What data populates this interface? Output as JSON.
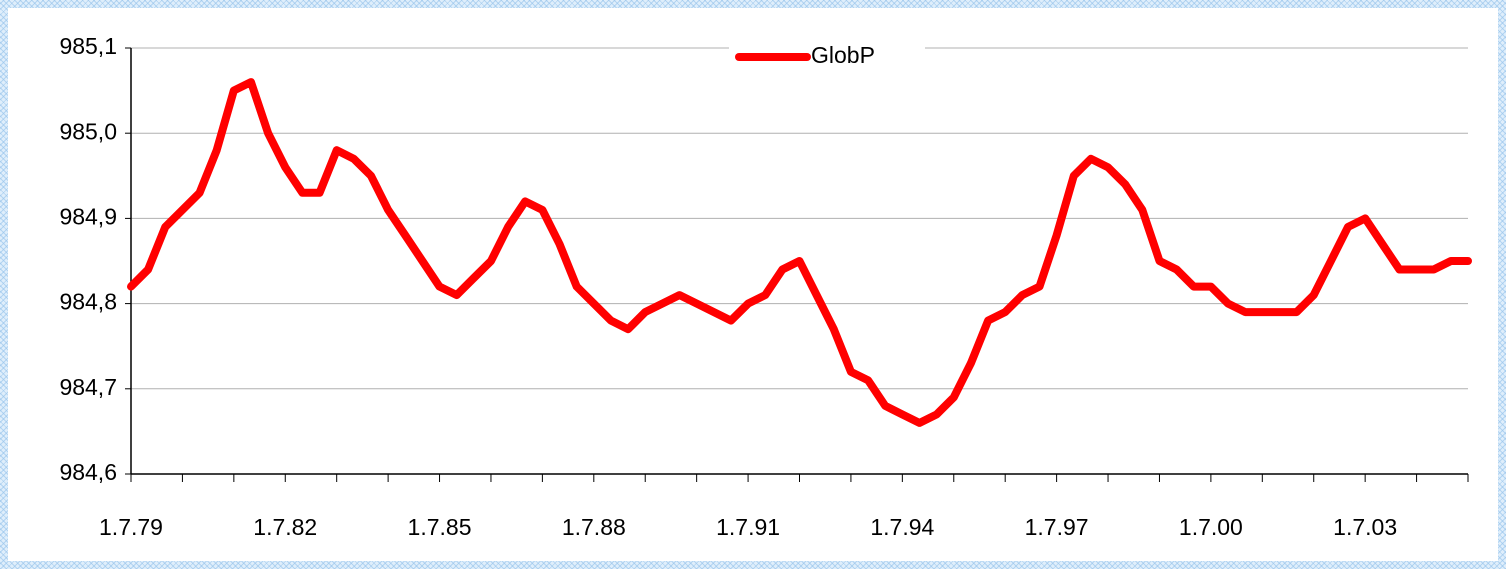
{
  "chart_data": {
    "type": "line",
    "categories": [
      "1.7.79",
      null,
      null,
      null,
      null,
      null,
      null,
      null,
      null,
      "1.7.82",
      null,
      null,
      null,
      null,
      null,
      null,
      null,
      null,
      "1.7.85",
      null,
      null,
      null,
      null,
      null,
      null,
      null,
      null,
      "1.7.88",
      null,
      null,
      null,
      null,
      null,
      null,
      null,
      null,
      "1.7.91",
      null,
      null,
      null,
      null,
      null,
      null,
      null,
      null,
      "1.7.94",
      null,
      null,
      null,
      null,
      null,
      null,
      null,
      null,
      "1.7.97",
      null,
      null,
      null,
      null,
      null,
      null,
      null,
      null,
      "1.7.00",
      null,
      null,
      null,
      null,
      null,
      null,
      null,
      null,
      "1.7.03",
      null,
      null,
      null,
      null,
      null,
      null
    ],
    "series": [
      {
        "name": "GlobP",
        "color": "#ff0000",
        "values": [
          984.82,
          984.84,
          984.89,
          984.91,
          984.93,
          984.98,
          985.05,
          985.06,
          985.0,
          984.96,
          984.93,
          984.93,
          984.98,
          984.97,
          984.95,
          984.91,
          984.88,
          984.85,
          984.82,
          984.81,
          984.83,
          984.85,
          984.89,
          984.92,
          984.91,
          984.87,
          984.82,
          984.8,
          984.78,
          984.77,
          984.79,
          984.8,
          984.81,
          984.8,
          984.79,
          984.78,
          984.8,
          984.81,
          984.84,
          984.85,
          984.81,
          984.77,
          984.72,
          984.71,
          984.68,
          984.67,
          984.66,
          984.67,
          984.69,
          984.73,
          984.78,
          984.79,
          984.81,
          984.82,
          984.88,
          984.95,
          984.97,
          984.96,
          984.94,
          984.91,
          984.85,
          984.84,
          984.82,
          984.82,
          984.8,
          984.79,
          984.79,
          984.79,
          984.79,
          984.81,
          984.85,
          984.89,
          984.9,
          984.87,
          984.84,
          984.84,
          984.84,
          984.85,
          984.85
        ]
      }
    ],
    "ylim": [
      984.6,
      985.1
    ],
    "yticks": [
      {
        "value": 984.6,
        "label": "984,6"
      },
      {
        "value": 984.7,
        "label": "984,7"
      },
      {
        "value": 984.8,
        "label": "984,8"
      },
      {
        "value": 984.9,
        "label": "984,9"
      },
      {
        "value": 985.0,
        "label": "985,0"
      },
      {
        "value": 985.1,
        "label": "985,1"
      }
    ],
    "grid": true,
    "legend": "top"
  }
}
